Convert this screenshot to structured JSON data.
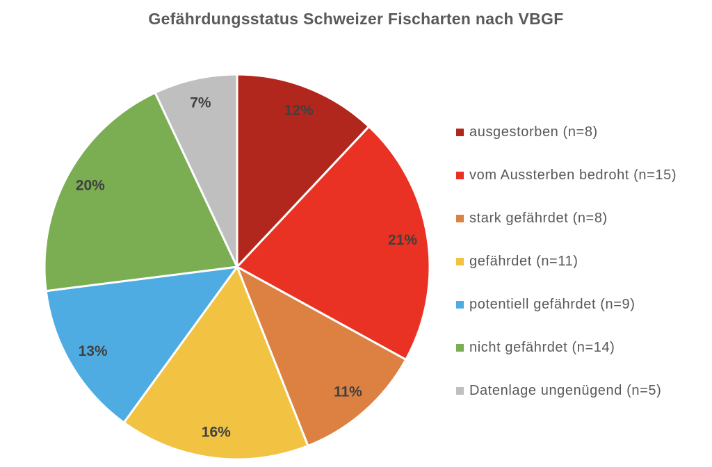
{
  "page": {
    "background": "#FFFFFF"
  },
  "chart_data": {
    "type": "pie",
    "title": "Gefährdungsstatus Schweizer Fischarten nach VBGF",
    "direction": "clockwise",
    "start_angle_deg": 0,
    "legend_position": "right",
    "grid": false,
    "slice_border_color": "#FFFFFF",
    "title_color": "#58595B",
    "percent_label_color": "#3F4040",
    "legend_text_color": "#58585A",
    "categories": [
      "ausgestorben",
      "vom Aussterben bedroht",
      "stark gefährdet",
      "gefährdet",
      "potentiell gefährdet",
      "nicht gefährdet",
      "Datenlage ungenügend"
    ],
    "values": [
      12,
      21,
      11,
      16,
      13,
      20,
      7
    ],
    "counts": [
      8,
      15,
      8,
      11,
      9,
      14,
      5
    ],
    "slices": [
      {
        "key": "ausgestorben",
        "legend_label": "ausgestorben (n=8)",
        "percent": 12,
        "n": 8,
        "color": "#B2271D",
        "percent_label": "12%"
      },
      {
        "key": "vom-aussterben-bedroht",
        "legend_label": "vom Aussterben bedroht (n=15)",
        "percent": 21,
        "n": 15,
        "color": "#E93223",
        "percent_label": "21%"
      },
      {
        "key": "stark-gefaehrdet",
        "legend_label": "stark gefährdet (n=8)",
        "percent": 11,
        "n": 8,
        "color": "#DD8142",
        "percent_label": "11%"
      },
      {
        "key": "gefaehrdet",
        "legend_label": "gefährdet (n=11)",
        "percent": 16,
        "n": 11,
        "color": "#F2C243",
        "percent_label": "16%"
      },
      {
        "key": "potentiell-gefaehrdet",
        "legend_label": "potentiell gefährdet (n=9)",
        "percent": 13,
        "n": 9,
        "color": "#4FACE3",
        "percent_label": "13%"
      },
      {
        "key": "nicht-gefaehrdet",
        "legend_label": "nicht gefährdet (n=14)",
        "percent": 20,
        "n": 14,
        "color": "#7BAE53",
        "percent_label": "20%"
      },
      {
        "key": "datenlage-ungenuegend",
        "legend_label": "Datenlage ungenügend (n=5)",
        "percent": 7,
        "n": 5,
        "color": "#BFBFBF",
        "percent_label": "7%"
      }
    ]
  }
}
